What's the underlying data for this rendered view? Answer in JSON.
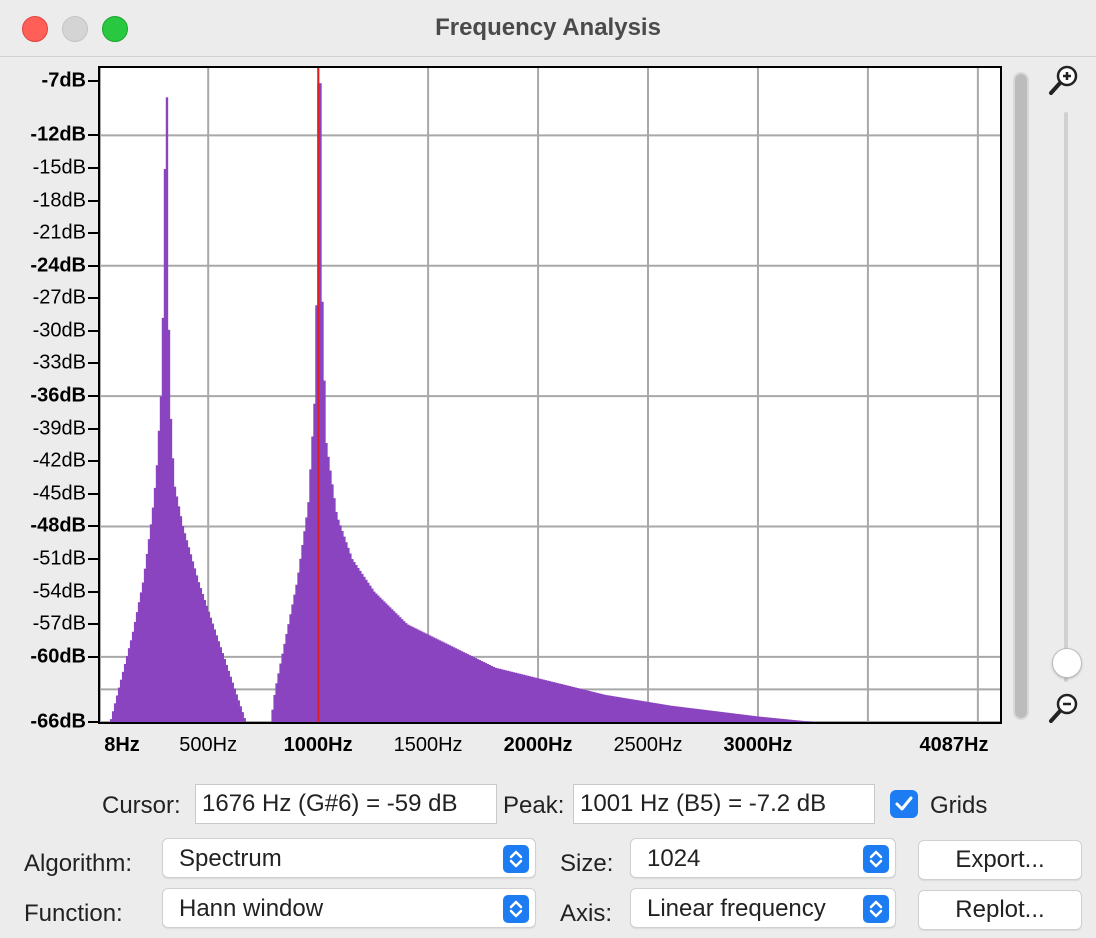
{
  "window": {
    "title": "Frequency Analysis"
  },
  "chart_data": {
    "type": "bar",
    "xlabel": "",
    "ylabel": "",
    "xlim": [
      8,
      4087
    ],
    "ylim": [
      -68,
      -7
    ],
    "x_tick_labels": [
      {
        "label": "8Hz",
        "value": 8,
        "bold": true
      },
      {
        "label": "500Hz",
        "value": 500,
        "bold": false
      },
      {
        "label": "1000Hz",
        "value": 1000,
        "bold": true
      },
      {
        "label": "1500Hz",
        "value": 1500,
        "bold": false
      },
      {
        "label": "2000Hz",
        "value": 2000,
        "bold": true
      },
      {
        "label": "2500Hz",
        "value": 2500,
        "bold": false
      },
      {
        "label": "3000Hz",
        "value": 3000,
        "bold": true
      },
      {
        "label": "4087Hz",
        "value": 4087,
        "bold": true
      }
    ],
    "y_tick_labels": [
      {
        "label": "-7dB",
        "value": -7,
        "bold": true
      },
      {
        "label": "-12dB",
        "value": -12,
        "bold": true
      },
      {
        "label": "-15dB",
        "value": -15,
        "bold": false
      },
      {
        "label": "-18dB",
        "value": -18,
        "bold": false
      },
      {
        "label": "-21dB",
        "value": -21,
        "bold": false
      },
      {
        "label": "-24dB",
        "value": -24,
        "bold": true
      },
      {
        "label": "-27dB",
        "value": -27,
        "bold": false
      },
      {
        "label": "-30dB",
        "value": -30,
        "bold": false
      },
      {
        "label": "-33dB",
        "value": -33,
        "bold": false
      },
      {
        "label": "-36dB",
        "value": -36,
        "bold": true
      },
      {
        "label": "-39dB",
        "value": -39,
        "bold": false
      },
      {
        "label": "-42dB",
        "value": -42,
        "bold": false
      },
      {
        "label": "-45dB",
        "value": -45,
        "bold": false
      },
      {
        "label": "-48dB",
        "value": -48,
        "bold": true
      },
      {
        "label": "-51dB",
        "value": -51,
        "bold": false
      },
      {
        "label": "-54dB",
        "value": -54,
        "bold": false
      },
      {
        "label": "-57dB",
        "value": -57,
        "bold": false
      },
      {
        "label": "-60dB",
        "value": -60,
        "bold": true
      },
      {
        "label": "-66dB",
        "value": -66,
        "bold": true
      }
    ],
    "x_grid": [
      8,
      500,
      1000,
      1500,
      2000,
      2500,
      3000,
      3500,
      4000
    ],
    "y_grid": [
      -12,
      -24,
      -36,
      -48,
      -60,
      -63,
      -66
    ],
    "grid": true,
    "bar_color": "#8a44c0",
    "cursor_line": {
      "x": 1001,
      "color": "#e02020"
    },
    "spectrum_profile": [
      {
        "hz": 20,
        "db": -68
      },
      {
        "hz": 50,
        "db": -66
      },
      {
        "hz": 100,
        "db": -62
      },
      {
        "hz": 150,
        "db": -58
      },
      {
        "hz": 200,
        "db": -53
      },
      {
        "hz": 240,
        "db": -47
      },
      {
        "hz": 260,
        "db": -43
      },
      {
        "hz": 280,
        "db": -36
      },
      {
        "hz": 290,
        "db": -28
      },
      {
        "hz": 300,
        "db": -12
      },
      {
        "hz": 305,
        "db": -8.5
      },
      {
        "hz": 310,
        "db": -20
      },
      {
        "hz": 320,
        "db": -36
      },
      {
        "hz": 340,
        "db": -44
      },
      {
        "hz": 380,
        "db": -48
      },
      {
        "hz": 450,
        "db": -53
      },
      {
        "hz": 500,
        "db": -56
      },
      {
        "hz": 550,
        "db": -59
      },
      {
        "hz": 600,
        "db": -62
      },
      {
        "hz": 650,
        "db": -65
      },
      {
        "hz": 700,
        "db": -68
      },
      {
        "hz": 750,
        "db": -68
      },
      {
        "hz": 780,
        "db": -66
      },
      {
        "hz": 800,
        "db": -63
      },
      {
        "hz": 850,
        "db": -58
      },
      {
        "hz": 900,
        "db": -53
      },
      {
        "hz": 950,
        "db": -46
      },
      {
        "hz": 980,
        "db": -36
      },
      {
        "hz": 995,
        "db": -18
      },
      {
        "hz": 1001,
        "db": -7.2
      },
      {
        "hz": 1010,
        "db": -24
      },
      {
        "hz": 1030,
        "db": -40
      },
      {
        "hz": 1080,
        "db": -47
      },
      {
        "hz": 1150,
        "db": -51
      },
      {
        "hz": 1250,
        "db": -54
      },
      {
        "hz": 1400,
        "db": -57
      },
      {
        "hz": 1600,
        "db": -59
      },
      {
        "hz": 1800,
        "db": -61
      },
      {
        "hz": 2000,
        "db": -62
      },
      {
        "hz": 2300,
        "db": -63.5
      },
      {
        "hz": 2600,
        "db": -64.5
      },
      {
        "hz": 3000,
        "db": -65.5
      },
      {
        "hz": 3500,
        "db": -66.5
      },
      {
        "hz": 4000,
        "db": -67.5
      },
      {
        "hz": 4087,
        "db": -68
      }
    ]
  },
  "readouts": {
    "cursor_label": "Cursor:",
    "cursor_value": "1676 Hz (G#6) = -59 dB",
    "peak_label": "Peak:",
    "peak_value": "1001 Hz (B5) = -7.2 dB",
    "grids_label": "Grids",
    "grids_checked": true
  },
  "controls": {
    "algorithm_label": "Algorithm:",
    "algorithm_value": "Spectrum",
    "size_label": "Size:",
    "size_value": "1024",
    "function_label": "Function:",
    "function_value": "Hann window",
    "axis_label": "Axis:",
    "axis_value": "Linear frequency",
    "export_button": "Export...",
    "replot_button": "Replot..."
  },
  "colors": {
    "accent": "#1e7cf2",
    "spectrum": "#8a44c0",
    "cursor": "#e02020"
  }
}
